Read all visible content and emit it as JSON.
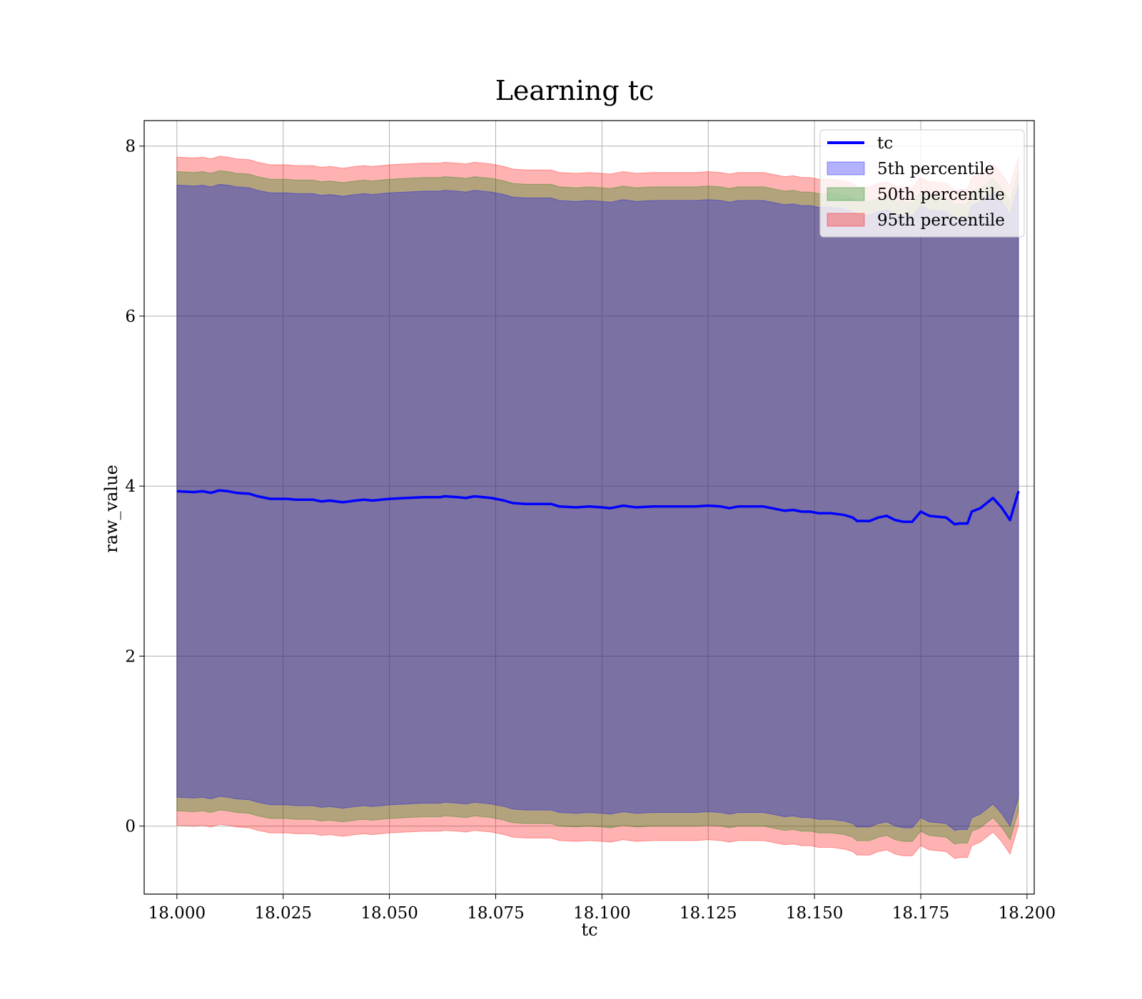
{
  "chart_data": {
    "type": "line",
    "title": "Learning tc",
    "xlabel": "tc",
    "ylabel": "raw_value",
    "xlim": [
      17.9923,
      18.2017
    ],
    "ylim": [
      -0.8,
      8.3
    ],
    "xticks": [
      18.0,
      18.025,
      18.05,
      18.075,
      18.1,
      18.125,
      18.15,
      18.175,
      18.2
    ],
    "xtick_labels": [
      "18.000",
      "18.025",
      "18.050",
      "18.075",
      "18.100",
      "18.125",
      "18.150",
      "18.175",
      "18.200"
    ],
    "yticks": [
      0,
      2,
      4,
      6,
      8
    ],
    "ytick_labels": [
      "0",
      "2",
      "4",
      "6",
      "8"
    ],
    "grid": true,
    "legend_position": "top-right",
    "legend": [
      {
        "label": "tc",
        "kind": "line",
        "color": "#0000ff"
      },
      {
        "label": "5th percentile",
        "kind": "patch",
        "color": "#0000ff"
      },
      {
        "label": "50th percentile",
        "kind": "patch",
        "color": "#008000"
      },
      {
        "label": "95th percentile",
        "kind": "patch",
        "color": "#ff0000"
      }
    ],
    "line": {
      "name": "tc",
      "color": "#0000ff",
      "points": [
        [
          18.0,
          3.94
        ],
        [
          18.004,
          3.93
        ],
        [
          18.006,
          3.94
        ],
        [
          18.008,
          3.92
        ],
        [
          18.01,
          3.95
        ],
        [
          18.012,
          3.94
        ],
        [
          18.014,
          3.92
        ],
        [
          18.017,
          3.91
        ],
        [
          18.019,
          3.88
        ],
        [
          18.022,
          3.85
        ],
        [
          18.026,
          3.85
        ],
        [
          18.028,
          3.84
        ],
        [
          18.032,
          3.84
        ],
        [
          18.034,
          3.82
        ],
        [
          18.036,
          3.83
        ],
        [
          18.039,
          3.81
        ],
        [
          18.042,
          3.83
        ],
        [
          18.044,
          3.84
        ],
        [
          18.046,
          3.83
        ],
        [
          18.048,
          3.84
        ],
        [
          18.05,
          3.85
        ],
        [
          18.054,
          3.86
        ],
        [
          18.058,
          3.87
        ],
        [
          18.062,
          3.87
        ],
        [
          18.063,
          3.88
        ],
        [
          18.066,
          3.87
        ],
        [
          18.068,
          3.86
        ],
        [
          18.07,
          3.88
        ],
        [
          18.074,
          3.86
        ],
        [
          18.077,
          3.83
        ],
        [
          18.079,
          3.8
        ],
        [
          18.082,
          3.79
        ],
        [
          18.085,
          3.79
        ],
        [
          18.088,
          3.79
        ],
        [
          18.09,
          3.76
        ],
        [
          18.094,
          3.75
        ],
        [
          18.097,
          3.76
        ],
        [
          18.1,
          3.75
        ],
        [
          18.102,
          3.74
        ],
        [
          18.105,
          3.77
        ],
        [
          18.108,
          3.75
        ],
        [
          18.112,
          3.76
        ],
        [
          18.116,
          3.76
        ],
        [
          18.119,
          3.76
        ],
        [
          18.122,
          3.76
        ],
        [
          18.125,
          3.77
        ],
        [
          18.128,
          3.76
        ],
        [
          18.13,
          3.74
        ],
        [
          18.132,
          3.76
        ],
        [
          18.135,
          3.76
        ],
        [
          18.138,
          3.76
        ],
        [
          18.14,
          3.74
        ],
        [
          18.143,
          3.71
        ],
        [
          18.145,
          3.72
        ],
        [
          18.147,
          3.7
        ],
        [
          18.149,
          3.7
        ],
        [
          18.151,
          3.68
        ],
        [
          18.154,
          3.68
        ],
        [
          18.157,
          3.66
        ],
        [
          18.159,
          3.63
        ],
        [
          18.16,
          3.59
        ],
        [
          18.163,
          3.59
        ],
        [
          18.165,
          3.63
        ],
        [
          18.167,
          3.65
        ],
        [
          18.169,
          3.6
        ],
        [
          18.171,
          3.58
        ],
        [
          18.173,
          3.58
        ],
        [
          18.175,
          3.7
        ],
        [
          18.177,
          3.65
        ],
        [
          18.179,
          3.64
        ],
        [
          18.181,
          3.63
        ],
        [
          18.183,
          3.55
        ],
        [
          18.184,
          3.56
        ],
        [
          18.186,
          3.56
        ],
        [
          18.187,
          3.7
        ],
        [
          18.189,
          3.74
        ],
        [
          18.192,
          3.86
        ],
        [
          18.194,
          3.75
        ],
        [
          18.196,
          3.6
        ],
        [
          18.198,
          3.94
        ]
      ]
    },
    "bands": [
      {
        "name": "95th percentile",
        "color": "#ff0000",
        "opacity": 0.3,
        "offset": 3.93
      },
      {
        "name": "50th percentile",
        "color": "#008000",
        "opacity": 0.3,
        "offset": 3.76
      },
      {
        "name": "5th percentile",
        "color": "#0000ff",
        "opacity": 0.3,
        "offset": 3.6
      }
    ]
  }
}
